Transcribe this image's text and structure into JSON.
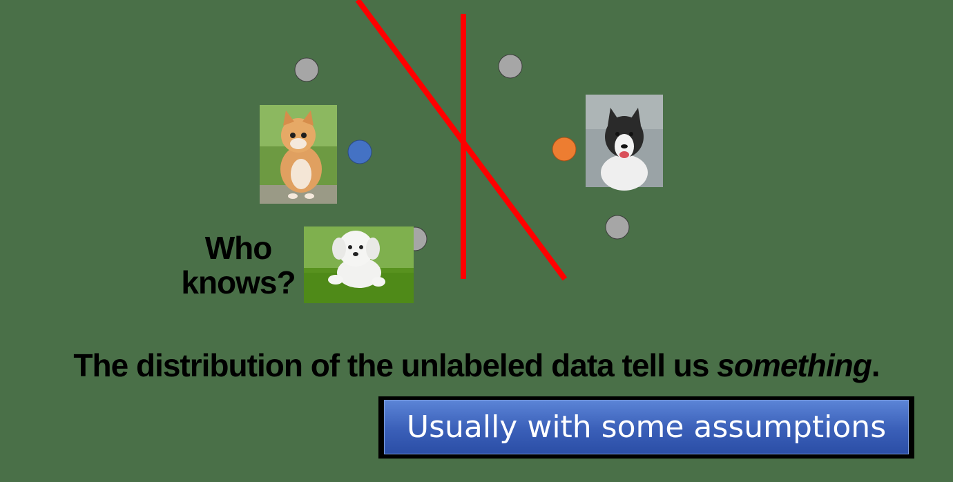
{
  "labels": {
    "who_knows_line1": "Who",
    "who_knows_line2": "knows?",
    "caption_main": "The distribution of the unlabeled data tell us ",
    "caption_emph": "something",
    "caption_end": ".",
    "assumption": "Usually with some assumptions"
  },
  "colors": {
    "background": "#4a7048",
    "boundary": "#ff0000",
    "unlabeled_point": "#a6a6a6",
    "cat_point": "#4472c4",
    "dog_point": "#ed7d31",
    "assumption_box": "#4068c0"
  },
  "images": {
    "cat": "kitten-photo",
    "husky": "husky-dog-photo",
    "puppy": "white-puppy-photo"
  }
}
